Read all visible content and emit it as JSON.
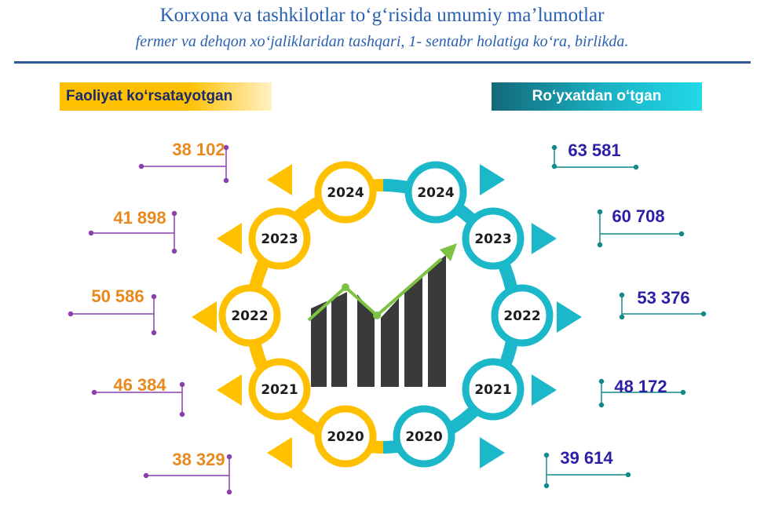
{
  "header": {
    "title": "Korxona va tashkilotlar to‘g‘risida umumiy ma’lumotlar",
    "subtitle": "fermer va dehqon xo‘jaliklaridan tashqari, 1- sentabr holatiga ko‘ra, birlikda."
  },
  "colors": {
    "active": "#ffc000",
    "registered": "#1ab8c9",
    "active_values": "#e8891f",
    "registered_values": "#2b1fa6",
    "active_lines": "#8a3fb0",
    "registered_lines": "#138a8a"
  },
  "chart_data": {
    "type": "infographic",
    "categories": [
      "2024",
      "2023",
      "2022",
      "2021",
      "2020"
    ],
    "series": [
      {
        "name": "Faoliyat ko‘rsatayotgan",
        "values": [
          38102,
          41898,
          50586,
          46384,
          38329
        ],
        "labels": [
          "38 102",
          "41 898",
          "50 586",
          "46 384",
          "38 329"
        ]
      },
      {
        "name": "Ro‘yxatdan o‘tgan",
        "values": [
          63581,
          60708,
          53376,
          48172,
          39614
        ],
        "labels": [
          "63 581",
          "60 708",
          "53 376",
          "48 172",
          "39 614"
        ]
      }
    ]
  }
}
